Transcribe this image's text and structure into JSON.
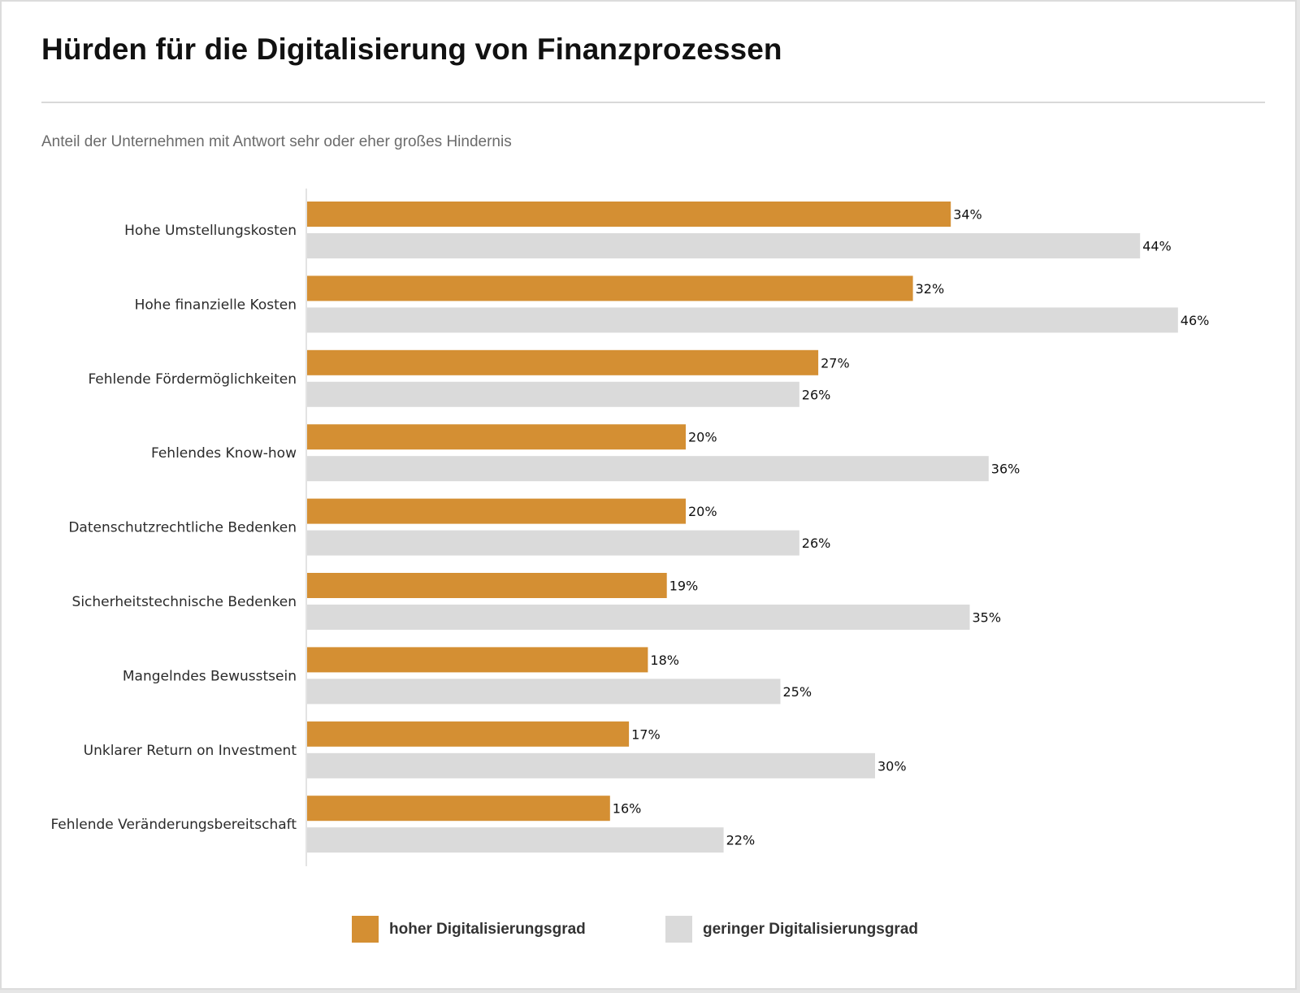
{
  "header": {
    "title": "Hürden für die Digitalisierung von Finanzprozessen",
    "subtitle": "Anteil der Unternehmen mit Antwort sehr oder eher großes Hindernis"
  },
  "colors": {
    "high": "#D48F33",
    "low": "#DADADA",
    "axis": "#E3E3E3"
  },
  "legend": [
    {
      "label": "hoher Digitalisierungsgrad",
      "series": "high"
    },
    {
      "label": "geringer Digitalisierungsgrad",
      "series": "low"
    }
  ],
  "chart_data": {
    "type": "bar",
    "orientation": "horizontal",
    "title": "Hürden für die Digitalisierung von Finanzprozessen",
    "subtitle": "Anteil der Unternehmen mit Antwort sehr oder eher großes Hindernis",
    "xlabel": "",
    "ylabel": "",
    "unit": "%",
    "xlim": [
      0,
      50
    ],
    "grid": false,
    "legend_position": "bottom-center",
    "categories": [
      "Hohe Umstellungskosten",
      "Hohe finanzielle Kosten",
      "Fehlende Fördermöglichkeiten",
      "Fehlendes Know-how",
      "Datenschutzrechtliche Bedenken",
      "Sicherheitstechnische Bedenken",
      "Mangelndes Bewusstsein",
      "Unklarer Return on Investment",
      "Fehlende Veränderungsbereitschaft"
    ],
    "series": [
      {
        "name": "hoher Digitalisierungsgrad",
        "key": "high",
        "values": [
          34,
          32,
          27,
          20,
          20,
          19,
          18,
          17,
          16
        ]
      },
      {
        "name": "geringer Digitalisierungsgrad",
        "key": "low",
        "values": [
          44,
          46,
          26,
          36,
          26,
          35,
          25,
          30,
          22
        ]
      }
    ],
    "data_labels": {
      "high": [
        "34%",
        "32%",
        "27%",
        "20%",
        "20%",
        "19%",
        "18%",
        "17%",
        "16%"
      ],
      "low": [
        "44%",
        "46%",
        "26%",
        "36%",
        "26%",
        "35%",
        "25%",
        "30%",
        "22%"
      ]
    }
  }
}
